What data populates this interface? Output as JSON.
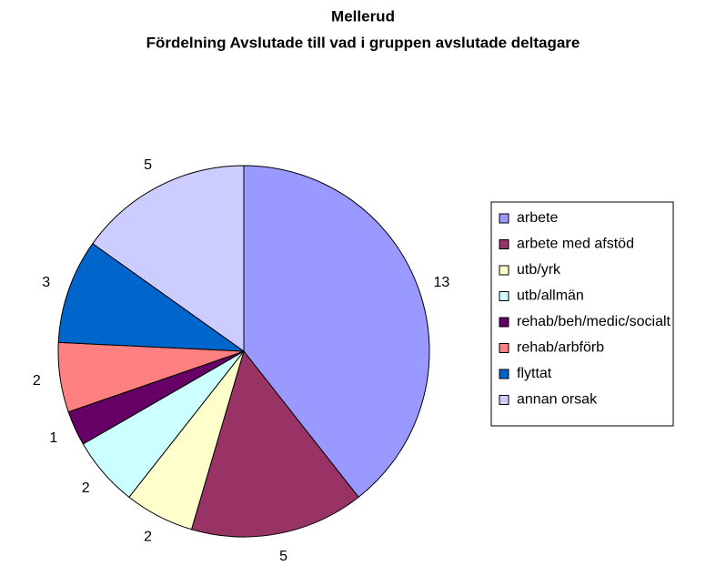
{
  "chart_data": {
    "type": "pie",
    "title": "Mellerud",
    "subtitle": "Fördelning Avslutade till vad i gruppen avslutade deltagare",
    "categories": [
      "arbete",
      "arbete med afstöd",
      "utb/yrk",
      "utb/allmän",
      "rehab/beh/medic/socialt",
      "rehab/arbförb",
      "flyttat",
      "annan orsak"
    ],
    "values": [
      13,
      5,
      2,
      2,
      1,
      2,
      3,
      5
    ],
    "colors": [
      "#9999ff",
      "#993366",
      "#ffffcc",
      "#ccffff",
      "#660066",
      "#ff8080",
      "#0066cc",
      "#ccccff"
    ],
    "legend": "right"
  }
}
